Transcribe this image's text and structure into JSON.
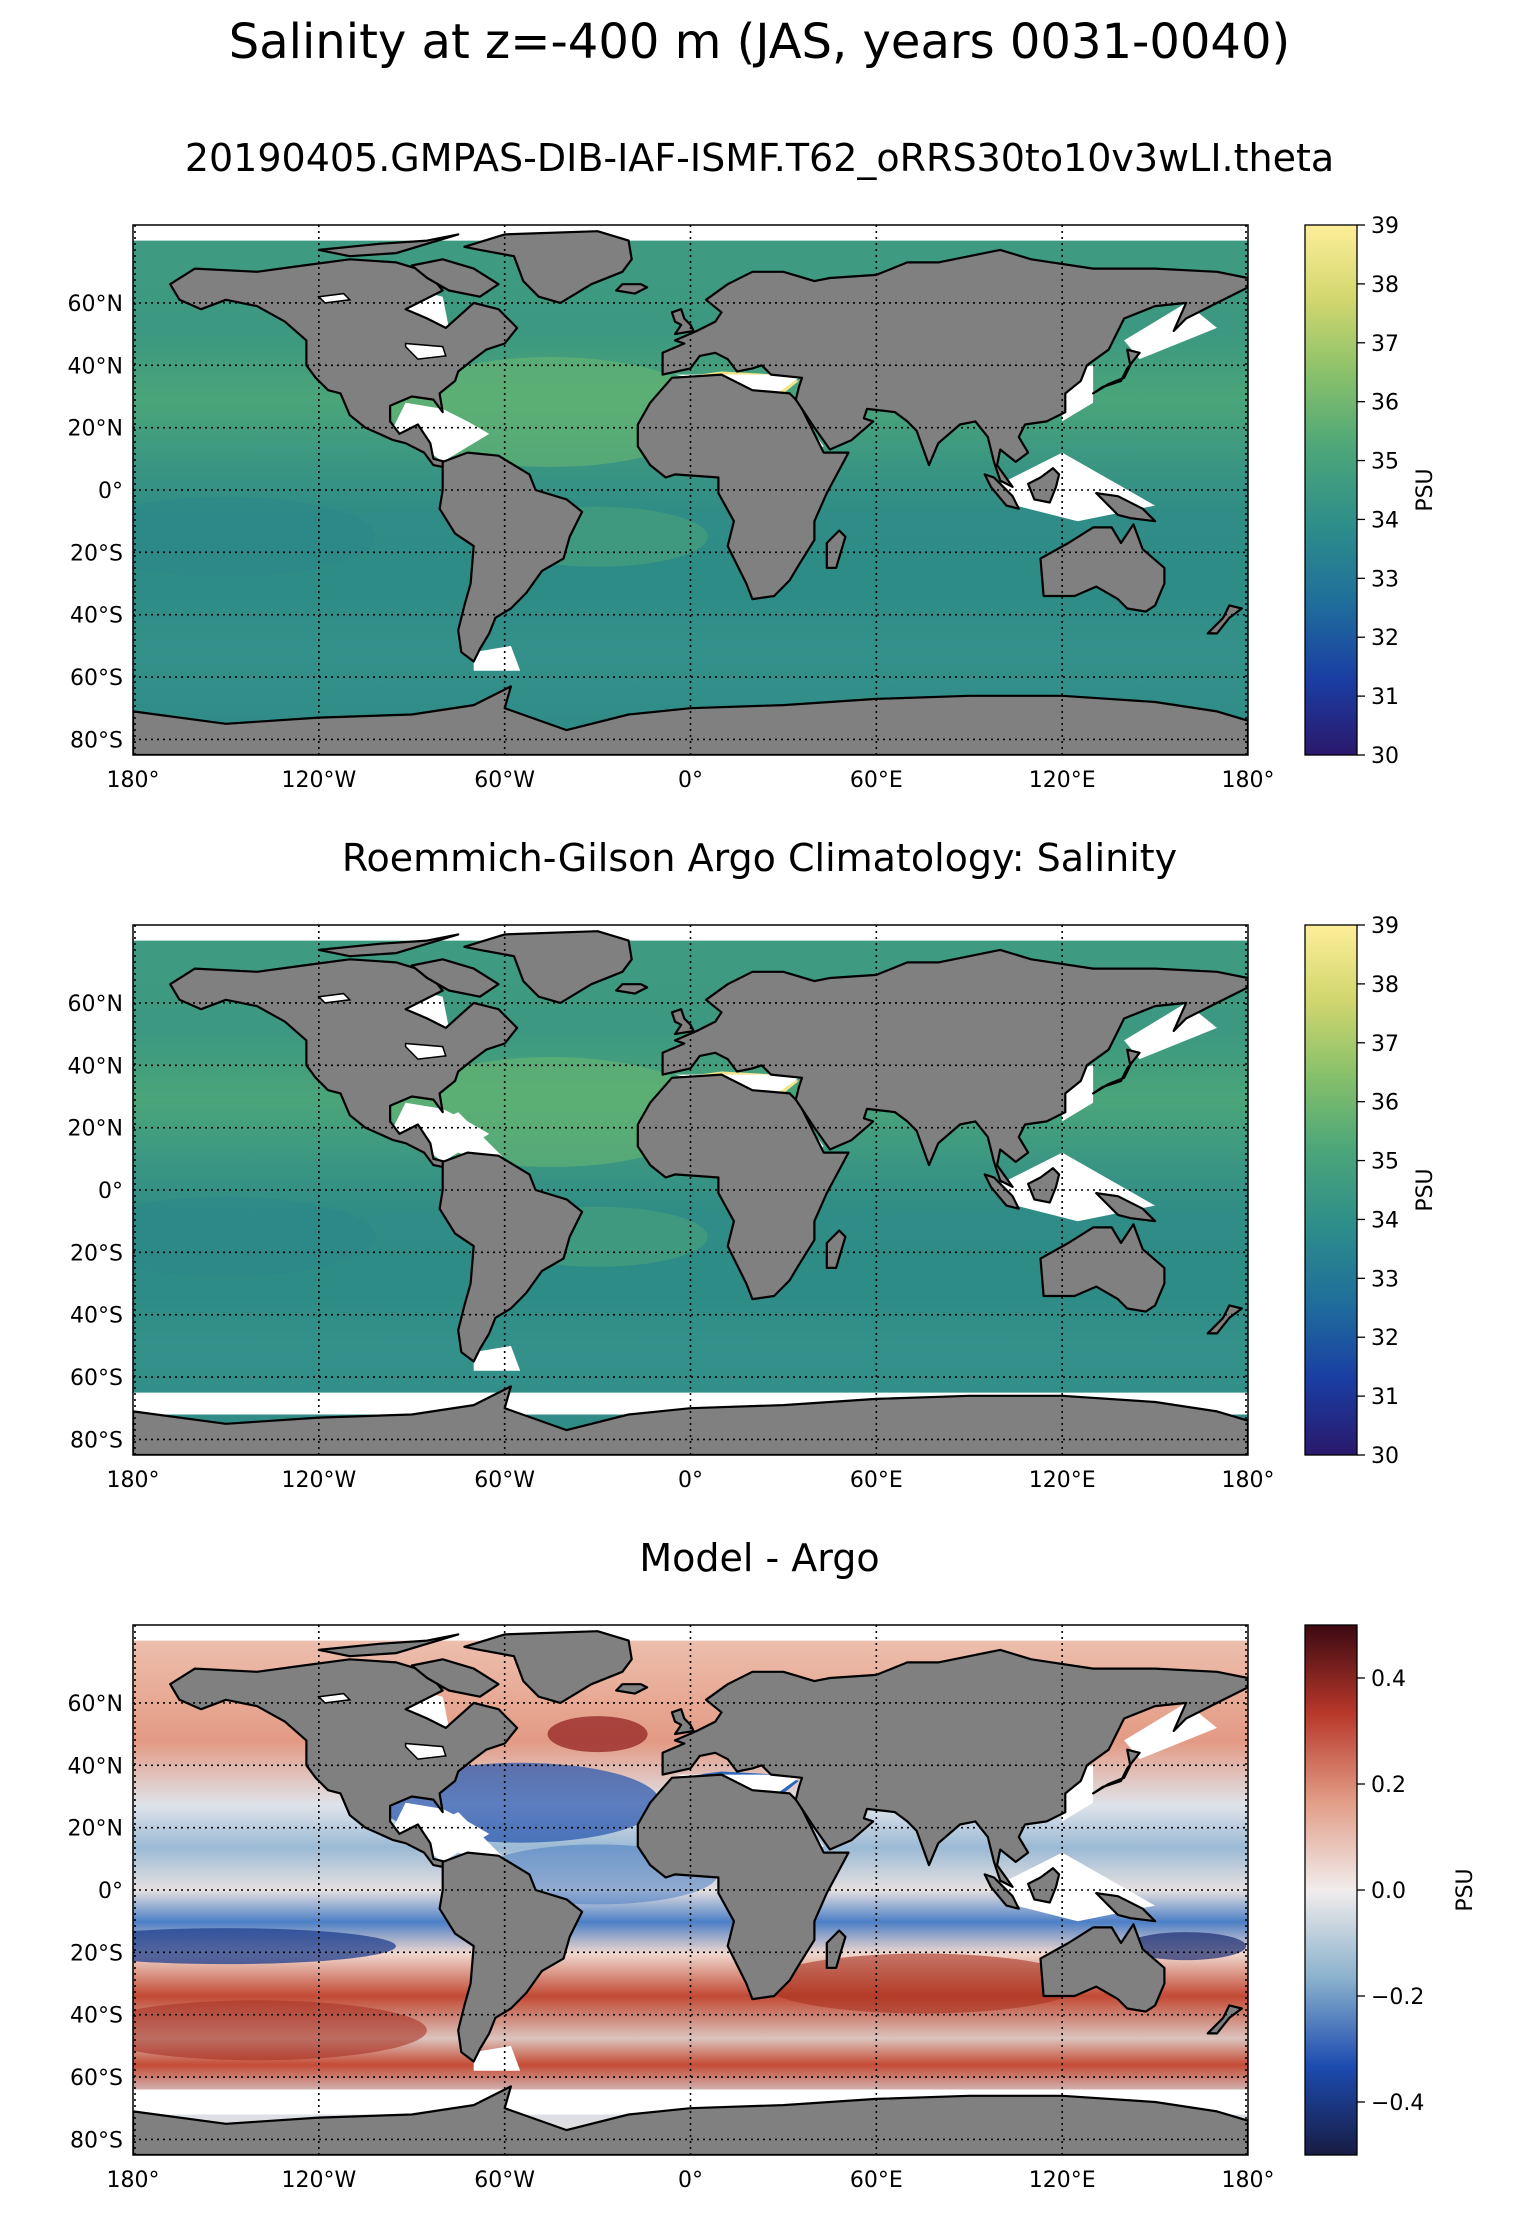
{
  "figure": {
    "title": "Salinity at z=-400 m (JAS, years 0031-0040)"
  },
  "colors": {
    "land": "#808080",
    "no_data": "#ffffff",
    "coast": "#000000",
    "haline_cmap": [
      "#2a186c",
      "#1a3ea3",
      "#1f6e9c",
      "#2d8d8a",
      "#4aa57a",
      "#86c06a",
      "#d1d66e",
      "#fdee99"
    ],
    "balance_cmap": [
      "#181c43",
      "#1c4bb0",
      "#8ab1cc",
      "#f1ecec",
      "#e29d86",
      "#b8382a",
      "#3c0912"
    ]
  },
  "chart_data": [
    {
      "type": "heatmap",
      "name": "model",
      "title": "20190405.GMPAS-DIB-IAF-ISMF.T62_oRRS30to10v3wLI.theta",
      "x": [
        "180°",
        "120°W",
        "60°W",
        "0°",
        "60°E",
        "120°E",
        "180°"
      ],
      "y": [
        "60°N",
        "40°N",
        "20°N",
        "0°",
        "20°S",
        "40°S",
        "60°S",
        "80°S"
      ],
      "xlim": [
        -180,
        180
      ],
      "ylim": [
        -85,
        85
      ],
      "grid": true,
      "colorbar": {
        "label": "PSU",
        "range": [
          30,
          39
        ],
        "ticks": [
          "30",
          "31",
          "32",
          "33",
          "34",
          "35",
          "36",
          "37",
          "38",
          "39"
        ]
      }
    },
    {
      "type": "heatmap",
      "name": "argo",
      "title": "Roemmich-Gilson Argo Climatology: Salinity",
      "x": [
        "180°",
        "120°W",
        "60°W",
        "0°",
        "60°E",
        "120°E",
        "180°"
      ],
      "y": [
        "60°N",
        "40°N",
        "20°N",
        "0°",
        "20°S",
        "40°S",
        "60°S",
        "80°S"
      ],
      "xlim": [
        -180,
        180
      ],
      "ylim": [
        -85,
        85
      ],
      "grid": true,
      "colorbar": {
        "label": "PSU",
        "range": [
          30,
          39
        ],
        "ticks": [
          "30",
          "31",
          "32",
          "33",
          "34",
          "35",
          "36",
          "37",
          "38",
          "39"
        ]
      }
    },
    {
      "type": "heatmap",
      "name": "difference",
      "title": "Model - Argo",
      "x": [
        "180°",
        "120°W",
        "60°W",
        "0°",
        "60°E",
        "120°E",
        "180°"
      ],
      "y": [
        "60°N",
        "40°N",
        "20°N",
        "0°",
        "20°S",
        "40°S",
        "60°S",
        "80°S"
      ],
      "xlim": [
        -180,
        180
      ],
      "ylim": [
        -85,
        85
      ],
      "grid": true,
      "colorbar": {
        "label": "PSU",
        "range": [
          -0.5,
          0.5
        ],
        "ticks": [
          "−0.4",
          "−0.2",
          "0.0",
          "0.2",
          "0.4"
        ]
      }
    }
  ]
}
